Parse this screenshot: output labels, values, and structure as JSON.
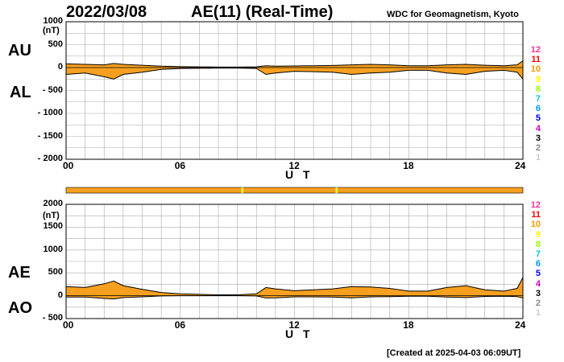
{
  "header": {
    "date": "2022/03/08",
    "title": "AE(11) (Real-Time)",
    "source": "WDC for Geomagnetism, Kyoto"
  },
  "footer": {
    "created": "[Created at 2025-04-03 06:09UT]"
  },
  "colors": {
    "fill": "#f7a020",
    "status_bar": "#f7a020",
    "status_marks": "#ffff33",
    "grid": "#aaaaaa",
    "line": "#000000"
  },
  "level_scale": [
    {
      "label": "12",
      "color": "#ff3399"
    },
    {
      "label": "11",
      "color": "#ff0000"
    },
    {
      "label": "10",
      "color": "#ff9900"
    },
    {
      "label": "9",
      "color": "#ffff00"
    },
    {
      "label": "8",
      "color": "#99ff00"
    },
    {
      "label": "7",
      "color": "#00cccc"
    },
    {
      "label": "6",
      "color": "#0099ff"
    },
    {
      "label": "5",
      "color": "#0000ff"
    },
    {
      "label": "4",
      "color": "#cc00cc"
    },
    {
      "label": "3",
      "color": "#000000"
    },
    {
      "label": "2",
      "color": "#888888"
    },
    {
      "label": "1",
      "color": "#cccccc"
    }
  ],
  "chart_data": [
    {
      "type": "area",
      "name_upper": "AU",
      "name_lower": "AL",
      "unit": "(nT)",
      "xlabel": "U T",
      "xlim": [
        0,
        24
      ],
      "xticks": [
        "00",
        "06",
        "12",
        "18",
        "24"
      ],
      "ylim": [
        -2000,
        1000
      ],
      "yticks": [
        "1000",
        "500",
        "0",
        "- 500",
        "- 1000",
        "- 1500",
        "- 2000"
      ],
      "x": [
        0,
        1,
        2,
        2.5,
        3,
        4,
        5,
        6,
        7,
        8,
        9,
        10,
        10.5,
        11,
        12,
        13,
        14,
        15,
        16,
        17,
        18,
        19,
        20,
        21,
        22,
        23,
        23.7,
        24
      ],
      "series": [
        {
          "name": "AU",
          "values": [
            80,
            70,
            60,
            90,
            70,
            50,
            30,
            20,
            15,
            10,
            10,
            15,
            40,
            30,
            35,
            40,
            45,
            60,
            70,
            60,
            40,
            40,
            60,
            70,
            50,
            40,
            60,
            150
          ]
        },
        {
          "name": "AL",
          "values": [
            -150,
            -120,
            -200,
            -250,
            -150,
            -100,
            -40,
            -20,
            -15,
            -10,
            -10,
            -20,
            -150,
            -120,
            -80,
            -90,
            -100,
            -150,
            -120,
            -100,
            -60,
            -60,
            -120,
            -150,
            -80,
            -60,
            -100,
            -250
          ]
        }
      ]
    },
    {
      "type": "area",
      "name_upper": "AE",
      "name_lower": "AO",
      "unit": "(nT)",
      "xlabel": "U T",
      "xlim": [
        0,
        24
      ],
      "xticks": [
        "00",
        "06",
        "12",
        "18",
        "24"
      ],
      "ylim": [
        -500,
        2000
      ],
      "yticks": [
        "2000",
        "1500",
        "1000",
        "500",
        "0",
        "- 500"
      ],
      "x": [
        0,
        1,
        2,
        2.5,
        3,
        4,
        5,
        6,
        7,
        8,
        9,
        10,
        10.5,
        11,
        12,
        13,
        14,
        15,
        16,
        17,
        18,
        19,
        20,
        21,
        22,
        23,
        23.7,
        24
      ],
      "series": [
        {
          "name": "AE",
          "values": [
            200,
            180,
            260,
            320,
            220,
            140,
            70,
            40,
            30,
            20,
            20,
            40,
            180,
            150,
            110,
            130,
            150,
            200,
            190,
            160,
            100,
            100,
            180,
            220,
            130,
            100,
            160,
            400
          ]
        },
        {
          "name": "AO",
          "values": [
            -30,
            -30,
            -60,
            -70,
            -40,
            -25,
            -5,
            0,
            0,
            0,
            0,
            -5,
            -50,
            -45,
            -25,
            -25,
            -30,
            -45,
            -25,
            -20,
            -10,
            -10,
            -30,
            -40,
            -15,
            -10,
            -20,
            -50
          ]
        }
      ]
    }
  ]
}
